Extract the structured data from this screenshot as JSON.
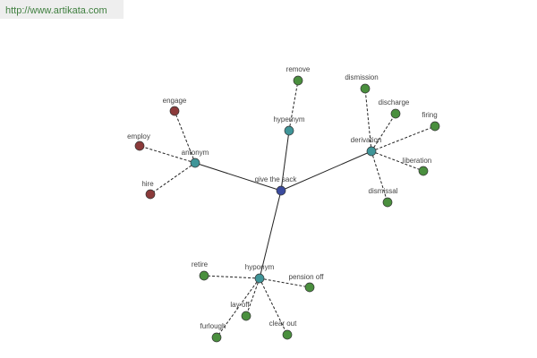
{
  "header": {
    "url": "http://www.artikata.com"
  },
  "nodes": [
    {
      "label": "give the sack"
    },
    {
      "label": "hypernym"
    },
    {
      "label": "remove"
    },
    {
      "label": "derivation"
    },
    {
      "label": "dismission"
    },
    {
      "label": "discharge"
    },
    {
      "label": "firing"
    },
    {
      "label": "liberation"
    },
    {
      "label": "dismissal"
    },
    {
      "label": "antonym"
    },
    {
      "label": "engage"
    },
    {
      "label": "employ"
    },
    {
      "label": "hire"
    },
    {
      "label": "hyponym"
    },
    {
      "label": "retire"
    },
    {
      "label": "pension off"
    },
    {
      "label": "lay off"
    },
    {
      "label": "furlough"
    },
    {
      "label": "clear out"
    }
  ]
}
